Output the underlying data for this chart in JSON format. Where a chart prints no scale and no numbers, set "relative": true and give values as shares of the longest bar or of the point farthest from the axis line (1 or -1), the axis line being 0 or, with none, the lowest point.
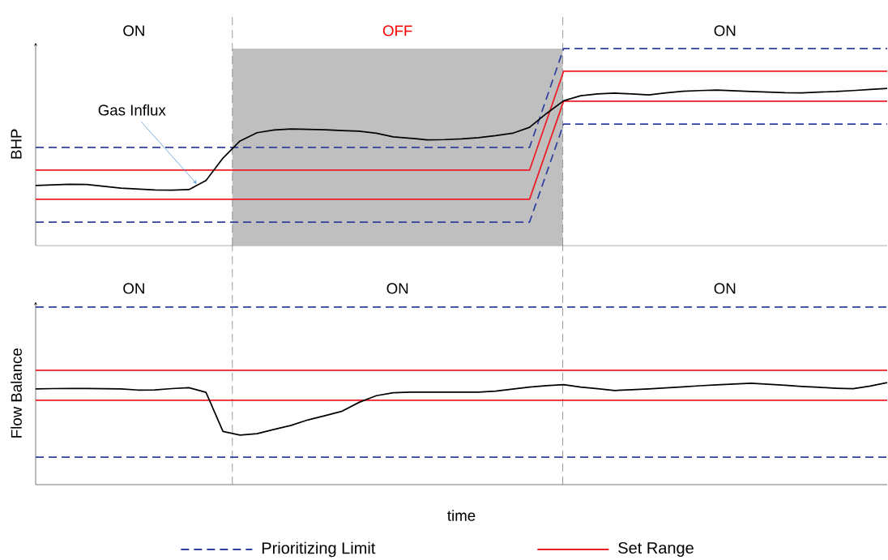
{
  "chart_data": [
    {
      "type": "line",
      "relative": true,
      "ylabel": "BHP",
      "legend": false,
      "categories": [
        null,
        null,
        null,
        null,
        null,
        null,
        null,
        null,
        null,
        null,
        null,
        null,
        null,
        null,
        null,
        null,
        null,
        null,
        null,
        null,
        null,
        null,
        null,
        null,
        null,
        null,
        null,
        null,
        null,
        null,
        null,
        null,
        null,
        null,
        null,
        null,
        null,
        null,
        null,
        null,
        null,
        null,
        null,
        null,
        null,
        null,
        null,
        null,
        null,
        null,
        null
      ],
      "annotations": [
        "ON",
        "OFF",
        "ON",
        "Gas Influx"
      ],
      "series": [
        {
          "color": "#2f3f9f",
          "line_style": "dashed",
          "values": [
            0.498,
            0.498,
            0.498,
            0.498,
            0.498,
            0.498,
            0.498,
            0.498,
            0.498,
            0.498,
            0.498,
            0.498,
            0.498,
            0.498,
            0.498,
            0.498,
            0.498,
            0.498,
            0.498,
            0.498,
            0.498,
            0.498,
            0.498,
            0.498,
            0.498,
            0.498,
            0.498,
            0.498,
            0.498,
            0.498,
            0.749,
            1.0,
            1.0,
            1.0,
            1.0,
            1.0,
            1.0,
            1.0,
            1.0,
            1.0,
            1.0,
            1.0,
            1.0,
            1.0,
            1.0,
            1.0,
            1.0,
            1.0,
            1.0,
            1.0,
            1.0
          ]
        },
        {
          "color": "#2f3f9f",
          "line_style": "dashed",
          "values": [
            0.119,
            0.119,
            0.119,
            0.119,
            0.119,
            0.119,
            0.119,
            0.119,
            0.119,
            0.119,
            0.119,
            0.119,
            0.119,
            0.119,
            0.119,
            0.119,
            0.119,
            0.119,
            0.119,
            0.119,
            0.119,
            0.119,
            0.119,
            0.119,
            0.119,
            0.119,
            0.119,
            0.119,
            0.119,
            0.119,
            0.368,
            0.617,
            0.617,
            0.617,
            0.617,
            0.617,
            0.617,
            0.617,
            0.617,
            0.617,
            0.617,
            0.617,
            0.617,
            0.617,
            0.617,
            0.617,
            0.617,
            0.617,
            0.617,
            0.617,
            0.617
          ]
        },
        {
          "color": "#ee1c25",
          "line_style": "solid",
          "values": [
            0.383,
            0.383,
            0.383,
            0.383,
            0.383,
            0.383,
            0.383,
            0.383,
            0.383,
            0.383,
            0.383,
            0.383,
            0.383,
            0.383,
            0.383,
            0.383,
            0.383,
            0.383,
            0.383,
            0.383,
            0.383,
            0.383,
            0.383,
            0.383,
            0.383,
            0.383,
            0.383,
            0.383,
            0.383,
            0.383,
            0.634,
            0.885,
            0.885,
            0.885,
            0.885,
            0.885,
            0.885,
            0.885,
            0.885,
            0.885,
            0.885,
            0.885,
            0.885,
            0.885,
            0.885,
            0.885,
            0.885,
            0.885,
            0.885,
            0.885,
            0.885
          ]
        },
        {
          "color": "#ee1c25",
          "line_style": "solid",
          "values": [
            0.235,
            0.235,
            0.235,
            0.235,
            0.235,
            0.235,
            0.235,
            0.235,
            0.235,
            0.235,
            0.235,
            0.235,
            0.235,
            0.235,
            0.235,
            0.235,
            0.235,
            0.235,
            0.235,
            0.235,
            0.235,
            0.235,
            0.235,
            0.235,
            0.235,
            0.235,
            0.235,
            0.235,
            0.235,
            0.235,
            0.484,
            0.733,
            0.733,
            0.733,
            0.733,
            0.733,
            0.733,
            0.733,
            0.733,
            0.733,
            0.733,
            0.733,
            0.733,
            0.733,
            0.733,
            0.733,
            0.733,
            0.733,
            0.733,
            0.733,
            0.733
          ]
        },
        {
          "color": "#000000",
          "line_style": "solid",
          "values": [
            0.305,
            0.308,
            0.311,
            0.31,
            0.301,
            0.292,
            0.287,
            0.282,
            0.281,
            0.284,
            0.33,
            0.444,
            0.531,
            0.573,
            0.587,
            0.592,
            0.59,
            0.588,
            0.584,
            0.581,
            0.57,
            0.552,
            0.545,
            0.536,
            0.538,
            0.542,
            0.548,
            0.558,
            0.57,
            0.6,
            0.671,
            0.735,
            0.761,
            0.77,
            0.774,
            0.77,
            0.765,
            0.775,
            0.783,
            0.787,
            0.79,
            0.786,
            0.782,
            0.779,
            0.776,
            0.775,
            0.779,
            0.782,
            0.787,
            0.793,
            0.798
          ]
        }
      ]
    },
    {
      "type": "line",
      "relative": true,
      "ylabel": "Flow Balance",
      "xlabel": "time",
      "legend": "bottom",
      "categories": [
        null,
        null,
        null,
        null,
        null,
        null,
        null,
        null,
        null,
        null,
        null,
        null,
        null,
        null,
        null,
        null,
        null,
        null,
        null,
        null,
        null,
        null,
        null,
        null,
        null,
        null,
        null,
        null,
        null,
        null,
        null,
        null,
        null,
        null,
        null,
        null,
        null,
        null,
        null,
        null,
        null,
        null,
        null,
        null,
        null,
        null,
        null,
        null,
        null,
        null,
        null
      ],
      "annotations": [
        "ON",
        "ON",
        "ON"
      ],
      "series": [
        {
          "name": "Prioritizing Limit",
          "color": "#2f3f9f",
          "line_style": "dashed",
          "values": [
            1.0,
            1.0,
            1.0,
            1.0,
            1.0,
            1.0,
            1.0,
            1.0,
            1.0,
            1.0,
            1.0,
            1.0,
            1.0,
            1.0,
            1.0,
            1.0,
            1.0,
            1.0,
            1.0,
            1.0,
            1.0,
            1.0,
            1.0,
            1.0,
            1.0,
            1.0,
            1.0,
            1.0,
            1.0,
            1.0,
            1.0,
            1.0,
            1.0,
            1.0,
            1.0,
            1.0,
            1.0,
            1.0,
            1.0,
            1.0,
            1.0,
            1.0,
            1.0,
            1.0,
            1.0,
            1.0,
            1.0,
            1.0,
            1.0,
            1.0,
            1.0
          ]
        },
        {
          "color": "#2f3f9f",
          "line_style": "dashed",
          "values": [
            0.155,
            0.155,
            0.155,
            0.155,
            0.155,
            0.155,
            0.155,
            0.155,
            0.155,
            0.155,
            0.155,
            0.155,
            0.155,
            0.155,
            0.155,
            0.155,
            0.155,
            0.155,
            0.155,
            0.155,
            0.155,
            0.155,
            0.155,
            0.155,
            0.155,
            0.155,
            0.155,
            0.155,
            0.155,
            0.155,
            0.155,
            0.155,
            0.155,
            0.155,
            0.155,
            0.155,
            0.155,
            0.155,
            0.155,
            0.155,
            0.155,
            0.155,
            0.155,
            0.155,
            0.155,
            0.155,
            0.155,
            0.155,
            0.155,
            0.155,
            0.155
          ]
        },
        {
          "name": "Set Range",
          "color": "#ee1c25",
          "line_style": "solid",
          "values": [
            0.644,
            0.644,
            0.644,
            0.644,
            0.644,
            0.644,
            0.644,
            0.644,
            0.644,
            0.644,
            0.644,
            0.644,
            0.644,
            0.644,
            0.644,
            0.644,
            0.644,
            0.644,
            0.644,
            0.644,
            0.644,
            0.644,
            0.644,
            0.644,
            0.644,
            0.644,
            0.644,
            0.644,
            0.644,
            0.644,
            0.644,
            0.644,
            0.644,
            0.644,
            0.644,
            0.644,
            0.644,
            0.644,
            0.644,
            0.644,
            0.644,
            0.644,
            0.644,
            0.644,
            0.644,
            0.644,
            0.644,
            0.644,
            0.644,
            0.644,
            0.644
          ]
        },
        {
          "color": "#ee1c25",
          "line_style": "solid",
          "values": [
            0.475,
            0.475,
            0.475,
            0.475,
            0.475,
            0.475,
            0.475,
            0.475,
            0.475,
            0.475,
            0.475,
            0.475,
            0.475,
            0.475,
            0.475,
            0.475,
            0.475,
            0.475,
            0.475,
            0.475,
            0.475,
            0.475,
            0.475,
            0.475,
            0.475,
            0.475,
            0.475,
            0.475,
            0.475,
            0.475,
            0.475,
            0.475,
            0.475,
            0.475,
            0.475,
            0.475,
            0.475,
            0.475,
            0.475,
            0.475,
            0.475,
            0.475,
            0.475,
            0.475,
            0.475,
            0.475,
            0.475,
            0.475,
            0.475,
            0.475,
            0.475
          ]
        },
        {
          "color": "#000000",
          "line_style": "solid",
          "values": [
            0.539,
            0.541,
            0.542,
            0.542,
            0.54,
            0.539,
            0.533,
            0.534,
            0.541,
            0.546,
            0.52,
            0.3,
            0.279,
            0.287,
            0.311,
            0.334,
            0.365,
            0.389,
            0.414,
            0.464,
            0.501,
            0.518,
            0.521,
            0.521,
            0.521,
            0.521,
            0.521,
            0.527,
            0.538,
            0.55,
            0.558,
            0.563,
            0.55,
            0.54,
            0.53,
            0.535,
            0.539,
            0.545,
            0.551,
            0.557,
            0.562,
            0.567,
            0.571,
            0.566,
            0.56,
            0.553,
            0.548,
            0.543,
            0.54,
            0.555,
            0.575
          ]
        }
      ]
    }
  ]
}
